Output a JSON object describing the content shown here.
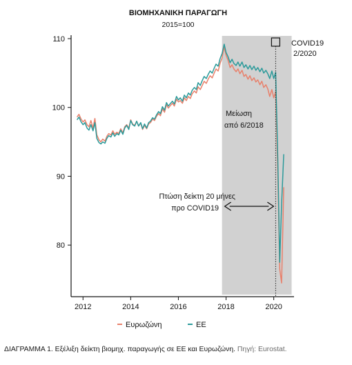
{
  "chart_data": {
    "type": "line",
    "title": "ΒΙΟΜΗΧΑΝΙΚΗ ΠΑΡΑΓΩΓΗ",
    "subtitle": "2015=100",
    "xlabel": "",
    "ylabel": "",
    "xlim": [
      2011.5,
      2020.85
    ],
    "ylim": [
      72.5,
      110.5
    ],
    "x_ticks": [
      2012,
      2014,
      2016,
      2018,
      2020
    ],
    "x_tick_labels": [
      "2012",
      "2014",
      "2016",
      "2018",
      "2020"
    ],
    "y_ticks": [
      80,
      90,
      100,
      110
    ],
    "y_tick_labels": [
      "80",
      "90",
      "100",
      "110"
    ],
    "grid": false,
    "legend_position": "bottom",
    "shaded_period": {
      "from": 2017.83,
      "to": 2020.75
    },
    "covid_marker": {
      "x": 2020.08,
      "y": 109.5
    },
    "series": [
      {
        "name": "Ευρωζώνη",
        "color": "#e8806b",
        "x": [
          2011.75,
          2011.83,
          2011.92,
          2012.0,
          2012.08,
          2012.17,
          2012.25,
          2012.33,
          2012.42,
          2012.5,
          2012.58,
          2012.67,
          2012.75,
          2012.83,
          2012.92,
          2013.0,
          2013.08,
          2013.17,
          2013.25,
          2013.33,
          2013.42,
          2013.5,
          2013.58,
          2013.67,
          2013.75,
          2013.83,
          2013.92,
          2014.0,
          2014.08,
          2014.17,
          2014.25,
          2014.33,
          2014.42,
          2014.5,
          2014.58,
          2014.67,
          2014.75,
          2014.83,
          2014.92,
          2015.0,
          2015.08,
          2015.17,
          2015.25,
          2015.33,
          2015.42,
          2015.5,
          2015.58,
          2015.67,
          2015.75,
          2015.83,
          2015.92,
          2016.0,
          2016.08,
          2016.17,
          2016.25,
          2016.33,
          2016.42,
          2016.5,
          2016.58,
          2016.67,
          2016.75,
          2016.83,
          2016.92,
          2017.0,
          2017.08,
          2017.17,
          2017.25,
          2017.33,
          2017.42,
          2017.5,
          2017.58,
          2017.67,
          2017.75,
          2017.83,
          2017.92,
          2018.0,
          2018.08,
          2018.17,
          2018.25,
          2018.33,
          2018.42,
          2018.5,
          2018.58,
          2018.67,
          2018.75,
          2018.83,
          2018.92,
          2019.0,
          2019.08,
          2019.17,
          2019.25,
          2019.33,
          2019.42,
          2019.5,
          2019.58,
          2019.67,
          2019.75,
          2019.83,
          2019.92,
          2020.0,
          2020.08,
          2020.17,
          2020.25,
          2020.33,
          2020.42
        ],
        "y": [
          98.6,
          99.0,
          98.3,
          97.9,
          98.2,
          97.5,
          97.2,
          98.1,
          97.0,
          98.4,
          96.0,
          95.3,
          95.0,
          95.4,
          95.1,
          95.8,
          96.2,
          96.0,
          96.6,
          96.1,
          96.4,
          96.2,
          96.9,
          96.3,
          97.2,
          97.5,
          97.0,
          98.2,
          97.6,
          97.4,
          98.0,
          97.3,
          97.7,
          96.8,
          97.4,
          96.9,
          97.6,
          97.8,
          98.3,
          98.1,
          98.7,
          99.1,
          98.8,
          99.8,
          99.3,
          100.4,
          99.9,
          100.3,
          100.6,
          100.2,
          101.2,
          100.8,
          101.0,
          100.6,
          101.4,
          101.0,
          101.6,
          101.3,
          102.0,
          102.4,
          102.1,
          103.0,
          102.6,
          103.2,
          103.8,
          103.5,
          104.1,
          104.6,
          104.3,
          105.0,
          105.6,
          105.3,
          106.4,
          107.2,
          108.8,
          107.6,
          106.9,
          105.8,
          106.2,
          105.6,
          105.2,
          105.6,
          104.9,
          105.4,
          104.5,
          104.8,
          104.1,
          104.6,
          103.9,
          104.3,
          103.7,
          104.0,
          103.3,
          103.8,
          102.9,
          103.3,
          102.7,
          101.6,
          102.6,
          101.4,
          102.3,
          90.2,
          76.5,
          74.5,
          88.4
        ]
      },
      {
        "name": "ΕΕ",
        "color": "#2a9a9a",
        "x": [
          2011.75,
          2011.83,
          2011.92,
          2012.0,
          2012.08,
          2012.17,
          2012.25,
          2012.33,
          2012.42,
          2012.5,
          2012.58,
          2012.67,
          2012.75,
          2012.83,
          2012.92,
          2013.0,
          2013.08,
          2013.17,
          2013.25,
          2013.33,
          2013.42,
          2013.5,
          2013.58,
          2013.67,
          2013.75,
          2013.83,
          2013.92,
          2014.0,
          2014.08,
          2014.17,
          2014.25,
          2014.33,
          2014.42,
          2014.5,
          2014.58,
          2014.67,
          2014.75,
          2014.83,
          2014.92,
          2015.0,
          2015.08,
          2015.17,
          2015.25,
          2015.33,
          2015.42,
          2015.5,
          2015.58,
          2015.67,
          2015.75,
          2015.83,
          2015.92,
          2016.0,
          2016.08,
          2016.17,
          2016.25,
          2016.33,
          2016.42,
          2016.5,
          2016.58,
          2016.67,
          2016.75,
          2016.83,
          2016.92,
          2017.0,
          2017.08,
          2017.17,
          2017.25,
          2017.33,
          2017.42,
          2017.5,
          2017.58,
          2017.67,
          2017.75,
          2017.83,
          2017.92,
          2018.0,
          2018.08,
          2018.17,
          2018.25,
          2018.33,
          2018.42,
          2018.5,
          2018.58,
          2018.67,
          2018.75,
          2018.83,
          2018.92,
          2019.0,
          2019.08,
          2019.17,
          2019.25,
          2019.33,
          2019.42,
          2019.5,
          2019.58,
          2019.67,
          2019.75,
          2019.83,
          2019.92,
          2020.0,
          2020.08,
          2020.17,
          2020.25,
          2020.33,
          2020.42
        ],
        "y": [
          98.2,
          98.6,
          97.9,
          97.5,
          97.8,
          97.0,
          96.7,
          97.5,
          96.6,
          97.8,
          95.5,
          94.9,
          94.7,
          95.0,
          94.8,
          95.5,
          95.9,
          95.7,
          96.3,
          95.8,
          96.2,
          96.0,
          96.7,
          96.1,
          97.0,
          97.4,
          96.8,
          98.1,
          97.5,
          97.3,
          98.0,
          97.3,
          97.8,
          96.9,
          97.6,
          97.0,
          97.8,
          98.0,
          98.5,
          98.3,
          98.9,
          99.4,
          99.1,
          100.1,
          99.6,
          100.7,
          100.2,
          100.6,
          100.9,
          100.5,
          101.6,
          101.1,
          101.4,
          100.9,
          101.8,
          101.4,
          102.1,
          101.8,
          102.5,
          102.9,
          102.6,
          103.6,
          103.2,
          103.9,
          104.5,
          104.2,
          104.8,
          105.3,
          105.0,
          105.7,
          106.3,
          106.0,
          107.1,
          107.8,
          109.2,
          108.0,
          107.4,
          106.5,
          107.0,
          106.4,
          106.1,
          106.6,
          106.0,
          106.6,
          105.8,
          106.2,
          105.6,
          106.1,
          105.5,
          106.0,
          105.4,
          105.8,
          105.2,
          105.7,
          105.0,
          105.4,
          104.9,
          104.2,
          105.3,
          104.2,
          105.1,
          92.5,
          77.5,
          86.0,
          93.2
        ]
      }
    ],
    "annotations": {
      "covid": "COVID19\n2/2020",
      "decline": "Μείωση\nαπό 6/2018",
      "fall": "Πτώση δείκτη 20 μήνες\nπρο COVID19"
    }
  },
  "caption": {
    "title": "ΔΙΑΓΡΑΜΜΑ 1. Εξέλιξη δείκτη βιομηχ. παραγωγής σε ΕΕ και Ευρωζώνη.",
    "source": "Πηγή: Eurostat."
  }
}
